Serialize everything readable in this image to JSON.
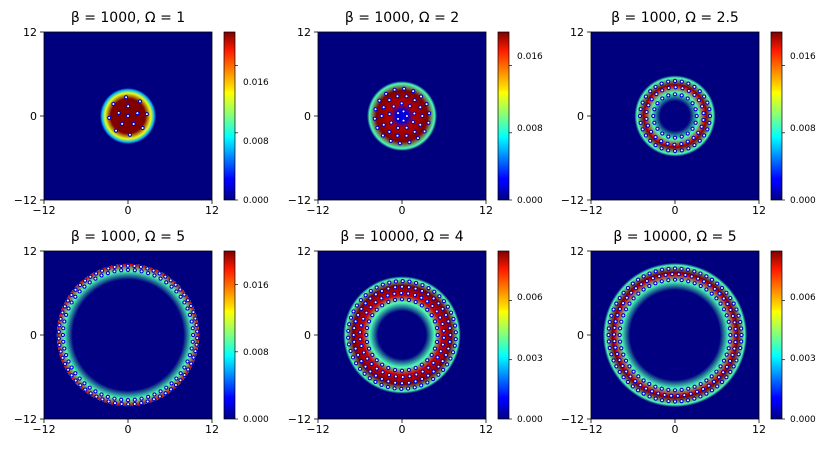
{
  "chart_data": [
    {
      "type": "heatmap",
      "title": "β = 1000, Ω = 1",
      "title_parts": {
        "beta_label": "β = 1000, ",
        "omega_label": "Ω = 1"
      },
      "xlim": [
        -12,
        12
      ],
      "ylim": [
        -12,
        12
      ],
      "xticks": [
        "−12",
        "0",
        "12"
      ],
      "yticks": [
        "12",
        "0",
        "−12"
      ],
      "colorbar": {
        "range": [
          0,
          0.02
        ],
        "ticks": [
          "0.000",
          "0.008",
          "0.016"
        ],
        "tick_values": [
          0,
          0.008,
          0.016
        ]
      },
      "condensate": {
        "inner_radius": 0,
        "outer_radius": 4,
        "peak": 0.02,
        "vortex_rings": [
          {
            "radius": 0,
            "count": 1,
            "phase": 0
          },
          {
            "radius": 1.4,
            "count": 5,
            "phase": 0.3
          },
          {
            "radius": 2.7,
            "count": 8,
            "phase": 0.1
          }
        ]
      }
    },
    {
      "type": "heatmap",
      "title": "β = 1000, Ω = 2",
      "title_parts": {
        "beta_label": "β = 1000, ",
        "omega_label": "Ω = 2"
      },
      "xlim": [
        -12,
        12
      ],
      "ylim": [
        -12,
        12
      ],
      "xticks": [
        "−12",
        "0",
        "12"
      ],
      "yticks": [
        "12",
        "0",
        "−12"
      ],
      "colorbar": {
        "range": [
          0,
          0.02
        ],
        "ticks": [
          "0.000",
          "0.008",
          "0.016"
        ],
        "tick_values": [
          0,
          0.008,
          0.016
        ]
      },
      "condensate": {
        "inner_radius": 0,
        "outer_radius": 5,
        "peak": 0.02,
        "core_value": 0.002,
        "core_radius": 1.4,
        "vortex_rings": [
          {
            "radius": 0.7,
            "count": 5,
            "phase": 0
          },
          {
            "radius": 1.8,
            "count": 9,
            "phase": 0.2
          },
          {
            "radius": 2.9,
            "count": 14,
            "phase": 0
          },
          {
            "radius": 3.9,
            "count": 18,
            "phase": 0.1
          }
        ]
      }
    },
    {
      "type": "heatmap",
      "title": "β = 1000, Ω = 2.5",
      "title_parts": {
        "beta_label": "β = 1000, ",
        "omega_label": "Ω = 2.5"
      },
      "xlim": [
        -12,
        12
      ],
      "ylim": [
        -12,
        12
      ],
      "xticks": [
        "−12",
        "0",
        "12"
      ],
      "yticks": [
        "12",
        "0",
        "−12"
      ],
      "colorbar": {
        "range": [
          0,
          0.02
        ],
        "ticks": [
          "0.000",
          "0.008",
          "0.016"
        ],
        "tick_values": [
          0,
          0.008,
          0.016
        ]
      },
      "condensate": {
        "inner_radius": 3,
        "outer_radius": 5.8,
        "peak": 0.02,
        "vortex_rings": [
          {
            "radius": 3.1,
            "count": 20,
            "phase": 0
          },
          {
            "radius": 4.1,
            "count": 26,
            "phase": 0.1
          },
          {
            "radius": 5.0,
            "count": 32,
            "phase": 0
          }
        ]
      }
    },
    {
      "type": "heatmap",
      "title": "β = 1000, Ω = 5",
      "title_parts": {
        "beta_label": "β = 1000, ",
        "omega_label": "Ω = 5"
      },
      "xlim": [
        -12,
        12
      ],
      "ylim": [
        -12,
        12
      ],
      "xticks": [
        "−12",
        "0",
        "12"
      ],
      "yticks": [
        "12",
        "0",
        "−12"
      ],
      "colorbar": {
        "range": [
          0,
          0.02
        ],
        "ticks": [
          "0.000",
          "0.008",
          "0.016"
        ],
        "tick_values": [
          0,
          0.008,
          0.016
        ]
      },
      "condensate": {
        "inner_radius": 8.8,
        "outer_radius": 10.2,
        "peak": 0.02,
        "vortex_rings": [
          {
            "radius": 9.3,
            "count": 60,
            "phase": 0
          },
          {
            "radius": 9.9,
            "count": 66,
            "phase": 0.05
          }
        ]
      }
    },
    {
      "type": "heatmap",
      "title": "β = 10000, Ω = 4",
      "title_parts": {
        "beta_label": "β = 10000, ",
        "omega_label": "Ω = 4"
      },
      "xlim": [
        -12,
        12
      ],
      "ylim": [
        -12,
        12
      ],
      "xticks": [
        "−12",
        "0",
        "12"
      ],
      "yticks": [
        "12",
        "0",
        "−12"
      ],
      "colorbar": {
        "range": [
          0,
          0.0085
        ],
        "ticks": [
          "0.000",
          "0.003",
          "0.006"
        ],
        "tick_values": [
          0,
          0.003,
          0.006
        ]
      },
      "condensate": {
        "inner_radius": 4.3,
        "outer_radius": 8.4,
        "peak": 0.0085,
        "vortex_rings": [
          {
            "radius": 5.1,
            "count": 32,
            "phase": 0
          },
          {
            "radius": 6.0,
            "count": 38,
            "phase": 0.1
          },
          {
            "radius": 6.9,
            "count": 44,
            "phase": 0
          },
          {
            "radius": 7.7,
            "count": 50,
            "phase": 0.05
          }
        ]
      }
    },
    {
      "type": "heatmap",
      "title": "β = 10000, Ω = 5",
      "title_parts": {
        "beta_label": "β = 10000, ",
        "omega_label": "Ω = 5"
      },
      "xlim": [
        -12,
        12
      ],
      "ylim": [
        -12,
        12
      ],
      "xticks": [
        "−12",
        "0",
        "12"
      ],
      "yticks": [
        "12",
        "0",
        "−12"
      ],
      "colorbar": {
        "range": [
          0,
          0.0085
        ],
        "ticks": [
          "0.000",
          "0.003",
          "0.006"
        ],
        "tick_values": [
          0,
          0.003,
          0.006
        ]
      },
      "condensate": {
        "inner_radius": 7.3,
        "outer_radius": 10.3,
        "peak": 0.0085,
        "vortex_rings": [
          {
            "radius": 7.9,
            "count": 52,
            "phase": 0
          },
          {
            "radius": 8.7,
            "count": 58,
            "phase": 0.1
          },
          {
            "radius": 9.5,
            "count": 64,
            "phase": 0
          }
        ]
      }
    }
  ],
  "colors": {
    "colormap": "jet",
    "background": "#00007f",
    "vortex_core": "#ffffff",
    "axis": "#000000"
  }
}
